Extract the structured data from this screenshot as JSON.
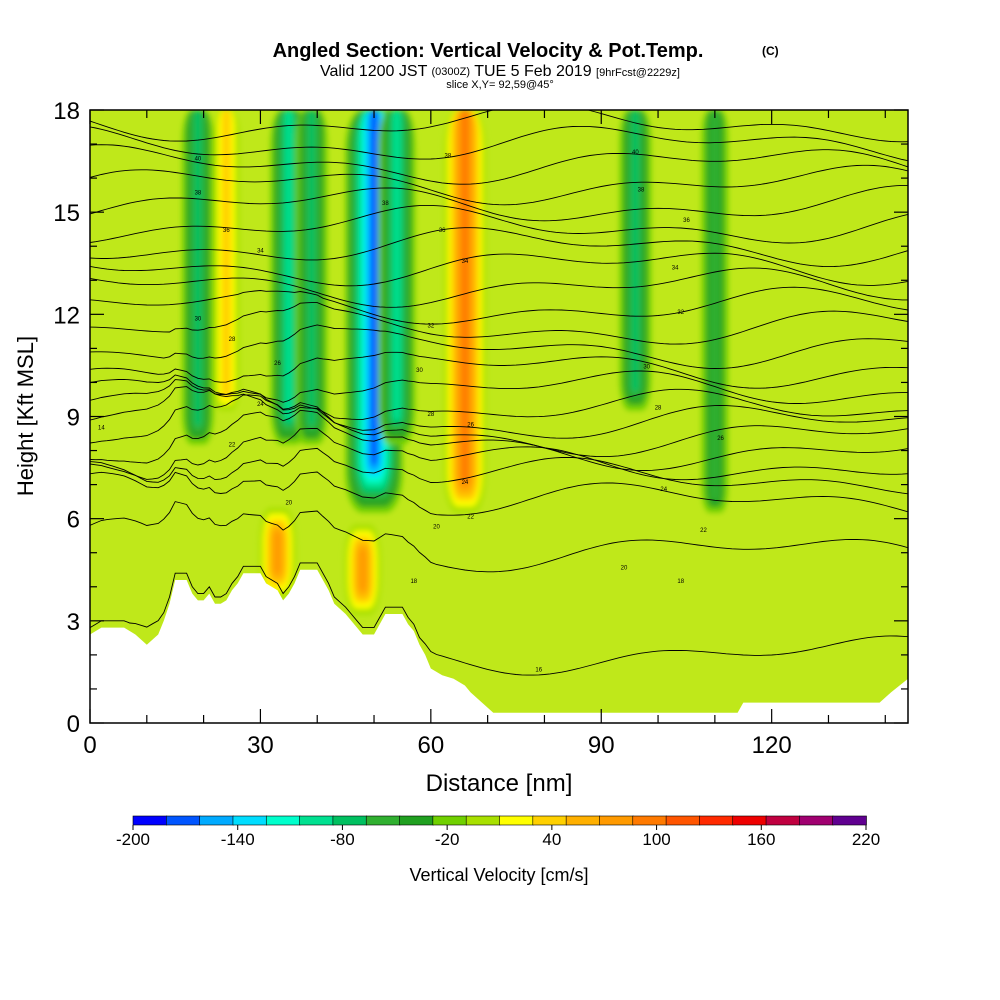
{
  "header": {
    "title": "Angled Section: Vertical Velocity & Pot.Temp.",
    "title_mark": "(C)",
    "valid_prefix": "Valid 1200 JST",
    "valid_utc": "(0300Z)",
    "valid_date": "TUE 5 Feb 2019",
    "forecast": "[9hrFcst@2229z]",
    "slice": "slice X,Y= 92,59@45°"
  },
  "chart_data": {
    "type": "heatmap",
    "xlabel": "Distance [nm]",
    "ylabel": "Height [Kft MSL]",
    "xlim": [
      0,
      144
    ],
    "ylim": [
      0,
      18
    ],
    "x_ticks": [
      "0",
      "30",
      "60",
      "90",
      "120"
    ],
    "x_tick_values": [
      0,
      30,
      60,
      90,
      120
    ],
    "y_ticks": [
      "0",
      "3",
      "6",
      "9",
      "12",
      "15",
      "18"
    ],
    "y_tick_values": [
      0,
      3,
      6,
      9,
      12,
      15,
      18
    ],
    "colorbar": {
      "label": "Vertical Velocity [cm/s]",
      "min": -200,
      "max": 220,
      "step": 20,
      "tick_labels": [
        "-200",
        "-140",
        "-80",
        "-20",
        "40",
        "100",
        "160",
        "220"
      ],
      "tick_values": [
        -200,
        -140,
        -80,
        -20,
        40,
        100,
        160,
        220
      ],
      "colors": [
        "#0000ff",
        "#0055ff",
        "#00aaff",
        "#00ddff",
        "#00ffcc",
        "#00e090",
        "#00c060",
        "#30b030",
        "#20a020",
        "#70d000",
        "#a8e000",
        "#ffff00",
        "#ffd000",
        "#ffb000",
        "#ff9a00",
        "#ff7a00",
        "#ff5500",
        "#ff2a00",
        "#ee0000",
        "#c00040",
        "#a00070",
        "#600090"
      ]
    },
    "velocity_features": [
      {
        "x": 19,
        "y_min": 8,
        "y_max": 18,
        "value": -70
      },
      {
        "x": 24,
        "y_min": 9,
        "y_max": 18,
        "value": 45
      },
      {
        "x": 35,
        "y_min": 8,
        "y_max": 18,
        "value": -80
      },
      {
        "x": 39,
        "y_min": 8,
        "y_max": 18,
        "value": -60
      },
      {
        "x": 50,
        "y_min": 6,
        "y_max": 18,
        "value": -170
      },
      {
        "x": 54,
        "y_min": 8,
        "y_max": 18,
        "value": -80
      },
      {
        "x": 66,
        "y_min": 6,
        "y_max": 18,
        "value": 110
      },
      {
        "x": 96,
        "y_min": 9,
        "y_max": 18,
        "value": -60
      },
      {
        "x": 110,
        "y_min": 6,
        "y_max": 18,
        "value": -40
      },
      {
        "x": 33,
        "y_min": 3.5,
        "y_max": 6.5,
        "value": 80
      },
      {
        "x": 48,
        "y_min": 3,
        "y_max": 6,
        "value": 90
      }
    ],
    "pot_temp_isentropes_kft": [
      2,
      5,
      6.5,
      7.2,
      7.6,
      8,
      8.4,
      8.8,
      9.2,
      9.8,
      10.4,
      11,
      11.6,
      12.2,
      12.8,
      13.4,
      14,
      14.6,
      15.2,
      15.8,
      16.4,
      17,
      17.6
    ],
    "isentrope_labels": [
      {
        "x": 2,
        "y": 8.7,
        "text": "14"
      },
      {
        "x": 19,
        "y": 16.6,
        "text": "40"
      },
      {
        "x": 19,
        "y": 15.6,
        "text": "38"
      },
      {
        "x": 24,
        "y": 14.5,
        "text": "36"
      },
      {
        "x": 30,
        "y": 13.9,
        "text": "34"
      },
      {
        "x": 19,
        "y": 11.9,
        "text": "30"
      },
      {
        "x": 25,
        "y": 11.3,
        "text": "28"
      },
      {
        "x": 33,
        "y": 10.6,
        "text": "26"
      },
      {
        "x": 30,
        "y": 9.4,
        "text": "24"
      },
      {
        "x": 25,
        "y": 8.2,
        "text": "22"
      },
      {
        "x": 35,
        "y": 6.5,
        "text": "20"
      },
      {
        "x": 52,
        "y": 15.3,
        "text": "38"
      },
      {
        "x": 63,
        "y": 16.7,
        "text": "38"
      },
      {
        "x": 62,
        "y": 14.5,
        "text": "36"
      },
      {
        "x": 66,
        "y": 13.6,
        "text": "34"
      },
      {
        "x": 60,
        "y": 11.7,
        "text": "32"
      },
      {
        "x": 58,
        "y": 10.4,
        "text": "30"
      },
      {
        "x": 60,
        "y": 9.1,
        "text": "28"
      },
      {
        "x": 67,
        "y": 8.8,
        "text": "26"
      },
      {
        "x": 66,
        "y": 7.1,
        "text": "24"
      },
      {
        "x": 67,
        "y": 6.1,
        "text": "22"
      },
      {
        "x": 61,
        "y": 5.8,
        "text": "20"
      },
      {
        "x": 57,
        "y": 4.2,
        "text": "18"
      },
      {
        "x": 96,
        "y": 16.8,
        "text": "40"
      },
      {
        "x": 97,
        "y": 15.7,
        "text": "38"
      },
      {
        "x": 105,
        "y": 14.8,
        "text": "36"
      },
      {
        "x": 103,
        "y": 13.4,
        "text": "34"
      },
      {
        "x": 104,
        "y": 12.1,
        "text": "32"
      },
      {
        "x": 98,
        "y": 10.5,
        "text": "30"
      },
      {
        "x": 100,
        "y": 9.3,
        "text": "28"
      },
      {
        "x": 111,
        "y": 8.4,
        "text": "26"
      },
      {
        "x": 101,
        "y": 6.9,
        "text": "24"
      },
      {
        "x": 108,
        "y": 5.7,
        "text": "22"
      },
      {
        "x": 94,
        "y": 4.6,
        "text": "20"
      },
      {
        "x": 104,
        "y": 4.2,
        "text": "18"
      },
      {
        "x": 79,
        "y": 1.6,
        "text": "16"
      }
    ],
    "terrain_kft": [
      [
        0,
        2.6
      ],
      [
        2,
        2.8
      ],
      [
        6,
        2.8
      ],
      [
        8,
        2.6
      ],
      [
        10,
        2.3
      ],
      [
        12,
        2.6
      ],
      [
        13,
        3.0
      ],
      [
        14,
        3.5
      ],
      [
        15,
        4.2
      ],
      [
        17,
        4.2
      ],
      [
        18,
        3.8
      ],
      [
        19,
        3.6
      ],
      [
        20,
        3.6
      ],
      [
        21,
        3.8
      ],
      [
        22,
        3.5
      ],
      [
        23,
        3.5
      ],
      [
        24,
        3.6
      ],
      [
        25,
        3.9
      ],
      [
        26,
        4.1
      ],
      [
        27,
        4.4
      ],
      [
        30,
        4.4
      ],
      [
        31,
        4.1
      ],
      [
        33,
        3.9
      ],
      [
        34,
        3.6
      ],
      [
        35,
        3.8
      ],
      [
        36,
        4.1
      ],
      [
        37,
        4.5
      ],
      [
        40,
        4.5
      ],
      [
        41,
        4.2
      ],
      [
        42,
        3.9
      ],
      [
        43,
        3.5
      ],
      [
        45,
        3.2
      ],
      [
        47,
        2.8
      ],
      [
        48,
        2.6
      ],
      [
        50,
        2.6
      ],
      [
        51,
        2.9
      ],
      [
        52,
        3.2
      ],
      [
        55,
        3.2
      ],
      [
        56,
        2.9
      ],
      [
        57,
        2.7
      ],
      [
        58,
        2.3
      ],
      [
        59,
        2.0
      ],
      [
        60,
        1.6
      ],
      [
        62,
        1.4
      ],
      [
        64,
        1.3
      ],
      [
        66,
        1.1
      ],
      [
        67,
        0.9
      ],
      [
        69,
        0.6
      ],
      [
        71,
        0.3
      ],
      [
        89,
        0.3
      ],
      [
        91,
        0.3
      ],
      [
        114,
        0.3
      ],
      [
        115,
        0.6
      ],
      [
        139,
        0.6
      ],
      [
        141,
        0.9
      ],
      [
        144,
        1.3
      ]
    ]
  }
}
